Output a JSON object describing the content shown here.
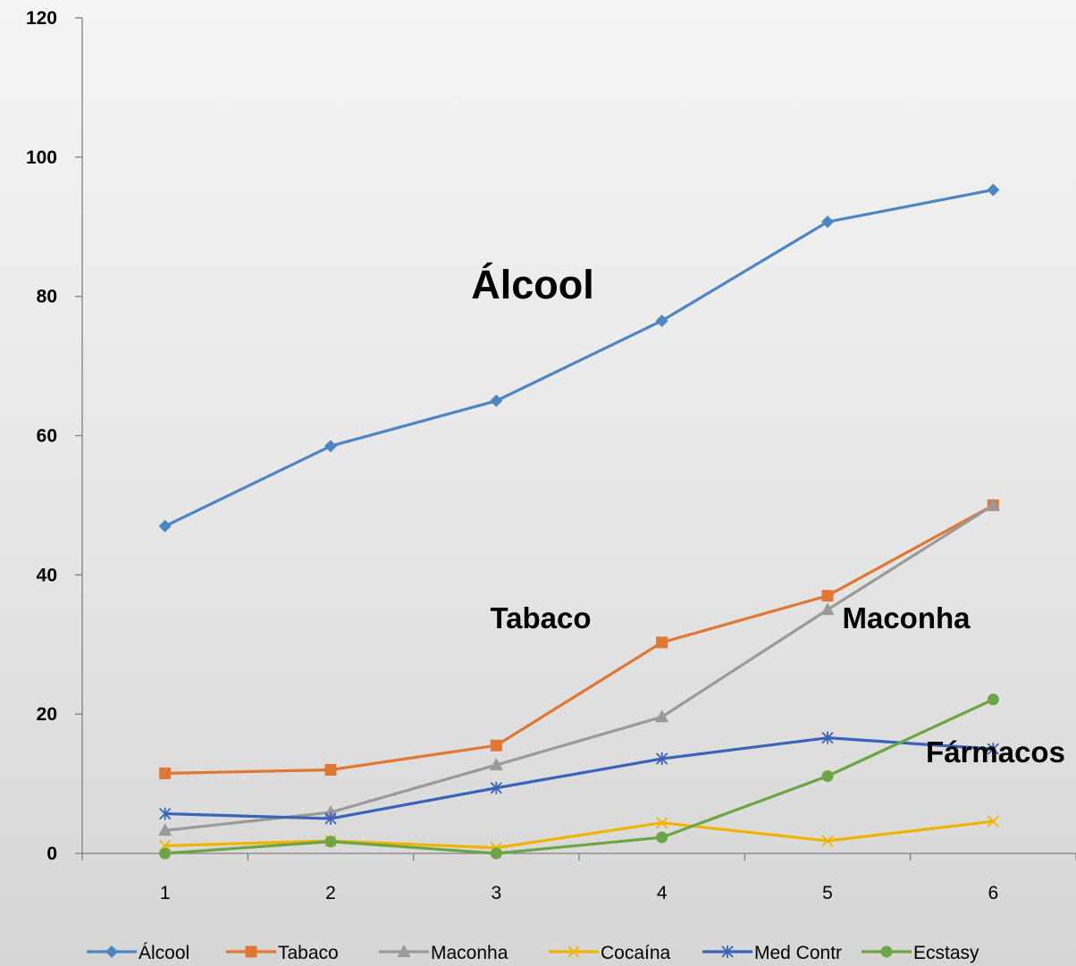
{
  "chart_data": {
    "type": "line",
    "categories": [
      "1",
      "2",
      "3",
      "4",
      "5",
      "6"
    ],
    "ylim": [
      0,
      120
    ],
    "yticks": [
      "0",
      "20",
      "40",
      "60",
      "80",
      "100",
      "120"
    ],
    "grid": false,
    "legend_position": "bottom",
    "series": [
      {
        "name": "Álcool",
        "values": [
          47,
          58.5,
          65,
          76.5,
          90.7,
          95.3
        ],
        "color": "#4e86c2",
        "marker": "diamond"
      },
      {
        "name": "Tabaco",
        "values": [
          11.5,
          12,
          15.5,
          30.3,
          37,
          50
        ],
        "color": "#e07735",
        "marker": "square"
      },
      {
        "name": "Maconha",
        "values": [
          3.3,
          5.9,
          12.7,
          19.6,
          35,
          50
        ],
        "color": "#9a9a9a",
        "marker": "triangle"
      },
      {
        "name": "Cocaína",
        "values": [
          1.1,
          1.8,
          0.8,
          4.4,
          1.8,
          4.6
        ],
        "color": "#f0b400",
        "marker": "x"
      },
      {
        "name": "Med Contr",
        "values": [
          5.7,
          5,
          9.4,
          13.6,
          16.6,
          15
        ],
        "color": "#3b63b8",
        "marker": "star"
      },
      {
        "name": "Ecstasy",
        "values": [
          0,
          1.7,
          0,
          2.3,
          11.1,
          22.1
        ],
        "color": "#6da444",
        "marker": "circle"
      }
    ],
    "annotations": [
      {
        "text": "Álcool"
      },
      {
        "text": "Tabaco"
      },
      {
        "text": "Maconha"
      },
      {
        "text": "Fármacos"
      }
    ]
  }
}
